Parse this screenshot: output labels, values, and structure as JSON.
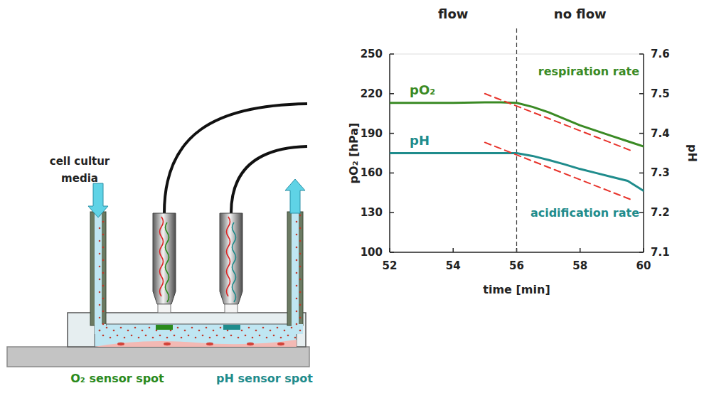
{
  "chart_data": {
    "type": "line",
    "xlabel": "time [min]",
    "ylabel": "pO₂ [hPa]",
    "y2label": "pH",
    "xlim": [
      52,
      60
    ],
    "xticks": [
      52,
      54,
      56,
      58,
      60
    ],
    "ylim": [
      100,
      250
    ],
    "yticks": [
      100,
      130,
      160,
      190,
      220,
      250
    ],
    "y2lim": [
      7.1,
      7.6
    ],
    "y2ticks": [
      7.1,
      7.2,
      7.3,
      7.4,
      7.5,
      7.6
    ],
    "grid": false,
    "regions": [
      {
        "label": "flow",
        "xlim": [
          52,
          56
        ]
      },
      {
        "label": "no flow",
        "xlim": [
          56,
          60
        ]
      }
    ],
    "series": [
      {
        "name": "pO₂",
        "color": "#3a8a24",
        "axis": "y",
        "line_style": "solid",
        "x": [
          52,
          53,
          54,
          55,
          55.5,
          56,
          56.5,
          57,
          57.5,
          58,
          58.5,
          59,
          59.5,
          60
        ],
        "values": [
          213,
          213,
          213,
          213.5,
          213.5,
          213,
          210,
          206,
          201,
          196,
          192,
          188,
          184,
          180
        ]
      },
      {
        "name": "pH",
        "color": "#1f8c8c",
        "axis": "y2",
        "line_style": "solid",
        "x": [
          52,
          53,
          54,
          55,
          55.5,
          56,
          56.5,
          57,
          57.5,
          58,
          58.5,
          59,
          59.5,
          60
        ],
        "values": [
          7.35,
          7.35,
          7.35,
          7.35,
          7.35,
          7.35,
          7.343,
          7.333,
          7.322,
          7.31,
          7.3,
          7.29,
          7.28,
          7.255
        ]
      },
      {
        "name": "respiration rate",
        "color": "#e8342c",
        "axis": "y",
        "line_style": "dashed",
        "x": [
          55,
          59.6
        ],
        "values": [
          220,
          177
        ]
      },
      {
        "name": "acidification rate",
        "color": "#e8342c",
        "axis": "y2",
        "line_style": "dashed",
        "x": [
          55,
          59.6
        ],
        "values": [
          7.377,
          7.233
        ]
      }
    ]
  },
  "diagram": {
    "inlet_label": [
      "cell cultur",
      "media"
    ],
    "spots": [
      {
        "label": "O₂ sensor spot",
        "color": "#2a8a1c"
      },
      {
        "label": "pH sensor spot",
        "color": "#1f8c8c"
      }
    ]
  }
}
